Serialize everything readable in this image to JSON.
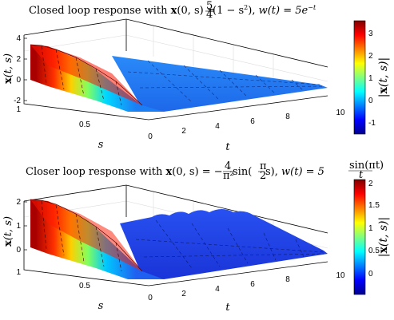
{
  "chart_data": [
    {
      "type": "surface",
      "title": "Closed loop response with x(0,s) = 5/4(1 − s²), w(t) = 5e^(−t)",
      "title_parts": {
        "prefix": "Closed loop response with ",
        "state": "x",
        "ic_args": "(0, s) = ",
        "ic_num": "5",
        "ic_den": "4",
        "ic_rest": "(1 − s",
        "ic_exp": "2",
        "ic_close": "), ",
        "w_lhs": "w(t) = 5e",
        "w_exp": "−t"
      },
      "xlabel": "t",
      "ylabel": "s",
      "zlabel": "x(t, s)",
      "colorbar_label": "|x(t, s)|",
      "t_ticks": [
        "2",
        "4",
        "6",
        "8",
        "10"
      ],
      "s_ticks": [
        "0",
        "0.5",
        "1"
      ],
      "z_ticks": [
        "-2",
        "0",
        "2",
        "4"
      ],
      "colorbar_ticks": [
        "-1",
        "0",
        "1",
        "2",
        "3"
      ],
      "xlim": [
        0,
        10
      ],
      "ylim": [
        0,
        1
      ],
      "zlim": [
        -2,
        4
      ],
      "clim": [
        -1.5,
        3.6
      ],
      "colormap": "jet",
      "grid": true,
      "profile": {
        "s": [
          0,
          0.25,
          0.5,
          0.75,
          1.0
        ],
        "x_at_t0": [
          3.6,
          3.0,
          2.0,
          0.8,
          -1.8
        ],
        "zero_by_t": 3
      }
    },
    {
      "type": "surface",
      "title": "Closer loop response with x(0,s) = −4/π² sin(π/2 s), w(t) = 5 sin(πt)/t",
      "title_parts": {
        "prefix": "Closer loop response with ",
        "state": "x",
        "ic_args": "(0, s) = −",
        "ic_num": "4",
        "ic_den": "π²",
        "ic_sin": " sin(",
        "ic_arg_num": "π",
        "ic_arg_den": "2",
        "ic_rest": "s), ",
        "w_lhs": "w(t) = 5",
        "w_num": "sin(πt)",
        "w_den": "t"
      },
      "xlabel": "t",
      "ylabel": "s",
      "zlabel": "x(t, s)",
      "colorbar_label": "|x(t, s)|",
      "t_ticks": [
        "2",
        "4",
        "6",
        "8",
        "10"
      ],
      "s_ticks": [
        "0",
        "0.5",
        "1"
      ],
      "z_ticks": [
        "0",
        "1",
        "2"
      ],
      "colorbar_ticks": [
        "0",
        "0.5",
        "1",
        "1.5",
        "2"
      ],
      "xlim": [
        0,
        10
      ],
      "ylim": [
        0,
        1
      ],
      "zlim": [
        0,
        2
      ],
      "clim": [
        -0.3,
        2.05
      ],
      "colormap": "jet",
      "grid": true,
      "profile": {
        "s": [
          0,
          0.25,
          0.5,
          0.75,
          1.0
        ],
        "x_at_t0": [
          2.0,
          1.7,
          1.2,
          0.6,
          0.05
        ],
        "zero_by_t": 3
      }
    }
  ],
  "colors": {
    "surface_low": "#1c6ff0",
    "surface_high": "#c00000",
    "axes": "#000000",
    "grid": "#d4d4d4"
  }
}
